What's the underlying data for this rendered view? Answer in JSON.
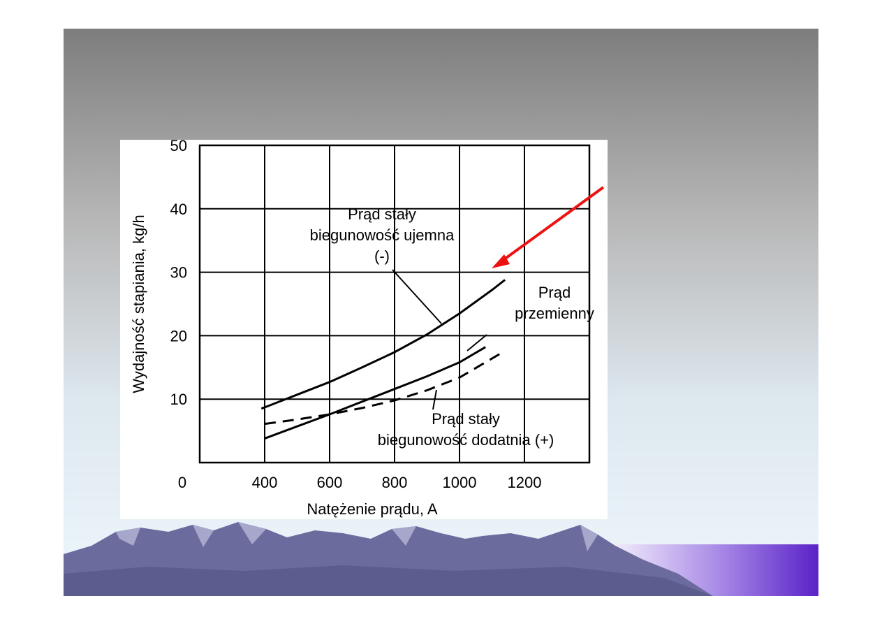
{
  "chart_data": {
    "type": "line",
    "xlabel": "Natężenie prądu, A",
    "ylabel": "Wydajność stapiania, kg/h",
    "xlim": [
      200,
      1400
    ],
    "ylim": [
      0,
      50
    ],
    "x_ticks": [
      "400",
      "600",
      "800",
      "1000",
      "1200"
    ],
    "x_origin_label": "0",
    "y_ticks": [
      "10",
      "20",
      "30",
      "40",
      "50"
    ],
    "grid": true,
    "series": [
      {
        "annotation_lines": [
          "Prąd stały",
          "biegunowość ujemna",
          "(-)"
        ],
        "line_style": "solid",
        "points": [
          [
            390,
            8.5
          ],
          [
            500,
            10.7
          ],
          [
            600,
            12.7
          ],
          [
            700,
            15.0
          ],
          [
            800,
            17.4
          ],
          [
            900,
            20.2
          ],
          [
            1000,
            23.5
          ],
          [
            1100,
            27.2
          ],
          [
            1140,
            28.8
          ]
        ]
      },
      {
        "annotation_lines": [
          "Prąd",
          "przemienny"
        ],
        "line_style": "solid",
        "points": [
          [
            400,
            3.8
          ],
          [
            500,
            5.7
          ],
          [
            600,
            7.6
          ],
          [
            700,
            9.6
          ],
          [
            800,
            11.6
          ],
          [
            900,
            13.6
          ],
          [
            1000,
            15.8
          ],
          [
            1080,
            18.2
          ]
        ]
      },
      {
        "annotation_lines": [
          "Prąd stały",
          "biegunowość dodatnia (+)"
        ],
        "line_style": "dashed",
        "points": [
          [
            400,
            6.1
          ],
          [
            500,
            6.8
          ],
          [
            600,
            7.6
          ],
          [
            700,
            8.6
          ],
          [
            800,
            9.8
          ],
          [
            900,
            11.4
          ],
          [
            1000,
            13.4
          ],
          [
            1080,
            15.8
          ],
          [
            1140,
            17.6
          ]
        ]
      }
    ]
  },
  "colors": {
    "slide_top": "#7d7d7d",
    "slide_bottom": "#eef7fc",
    "arrow": "#ee1111",
    "mountain": "#6b6b9e",
    "lake": "#6a33cc"
  }
}
